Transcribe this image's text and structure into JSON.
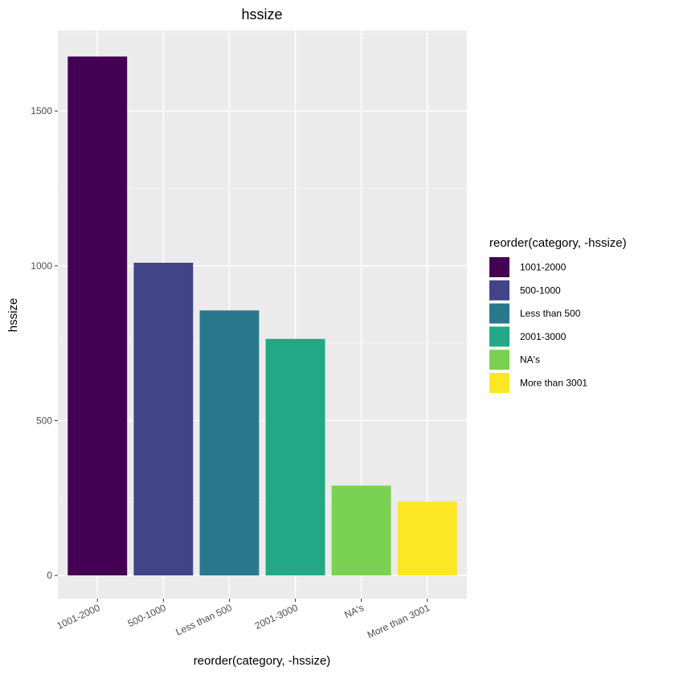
{
  "chart_data": {
    "type": "bar",
    "title": "hssize",
    "xlabel": "reorder(category, -hssize)",
    "ylabel": "hssize",
    "categories": [
      "1001-2000",
      "500-1000",
      "Less than 500",
      "2001-3000",
      "NA's",
      "More than 3001"
    ],
    "values": [
      1676,
      1010,
      856,
      764,
      290,
      238
    ],
    "colors": [
      "#440154",
      "#414487",
      "#2A788E",
      "#22A884",
      "#7AD151",
      "#FDE725"
    ],
    "ylim": [
      -75,
      1760
    ],
    "yticks": [
      0,
      500,
      1000,
      1500
    ],
    "grid": true,
    "legend": {
      "title": "reorder(category, -hssize)",
      "position": "right",
      "entries": [
        "1001-2000",
        "500-1000",
        "Less than 500",
        "2001-3000",
        "NA's",
        "More than 3001"
      ]
    }
  }
}
